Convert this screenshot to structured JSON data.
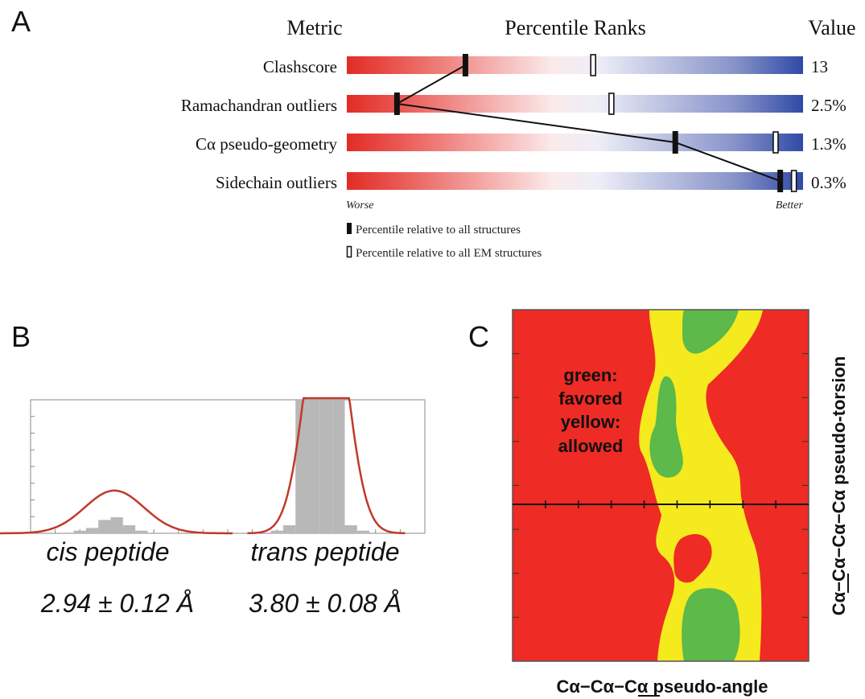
{
  "panels": {
    "a": "A",
    "b": "B",
    "c": "C"
  },
  "chart_data": [
    {
      "type": "bar",
      "panel": "A",
      "headers": {
        "metric": "Metric",
        "ranks": "Percentile Ranks",
        "value": "Value"
      },
      "scale": {
        "left_label": "Worse",
        "right_label": "Better"
      },
      "series": [
        {
          "name": "Percentile relative to all structures",
          "marker": "filled"
        },
        {
          "name": "Percentile relative to all EM structures",
          "marker": "open"
        }
      ],
      "metrics": [
        {
          "label": "Clashscore",
          "value_text": "13",
          "all_percentile": 26,
          "em_percentile": 54
        },
        {
          "label": "Ramachandran outliers",
          "value_text": "2.5%",
          "all_percentile": 11,
          "em_percentile": 58
        },
        {
          "label": "Cα pseudo-geometry",
          "value_text": "1.3%",
          "all_percentile": 72,
          "em_percentile": 94
        },
        {
          "label": "Sidechain outliers",
          "value_text": "0.3%",
          "all_percentile": 95,
          "em_percentile": 98
        }
      ],
      "xlim": [
        0,
        100
      ],
      "colors": {
        "worse": "#e32b25",
        "mid": "#ffffff",
        "better": "#2f4aa6"
      }
    },
    {
      "type": "bar",
      "panel": "B",
      "xlabel": "",
      "ylabel": "",
      "annotations": [
        {
          "line1": "cis peptide",
          "line2": "2.94 ± 0.12 Å"
        },
        {
          "line1": "trans peptide",
          "line2": "3.80 ± 0.08 Å"
        }
      ],
      "xlim": [
        2.6,
        4.2
      ],
      "bins_x": [
        2.8,
        2.85,
        2.9,
        2.95,
        3.0,
        3.05,
        3.6,
        3.65,
        3.7,
        3.75,
        3.8,
        3.85,
        3.9,
        3.95
      ],
      "bins_height": [
        2,
        4,
        10,
        12,
        6,
        2,
        2,
        6,
        100,
        100,
        100,
        100,
        6,
        2
      ],
      "fits": [
        {
          "mean": 2.94,
          "sd": 0.12,
          "peak": 32
        },
        {
          "mean": 3.8,
          "sd": 0.08,
          "peak": 200
        }
      ],
      "ylim": [
        0,
        100
      ],
      "colors": {
        "bars": "#b8b8b8",
        "fit": "#c0392b"
      }
    },
    {
      "type": "heatmap",
      "panel": "C",
      "xlabel": "Cα−Cα−Cα pseudo-angle",
      "ylabel": "Cα−Cα−Cα−Cα pseudo-torsion",
      "legend": [
        "green:",
        "favored",
        "yellow:",
        "allowed"
      ],
      "regions": {
        "disallowed": "#ee2b24",
        "allowed": "#f4ea1e",
        "favored": "#5cb94a"
      }
    }
  ]
}
